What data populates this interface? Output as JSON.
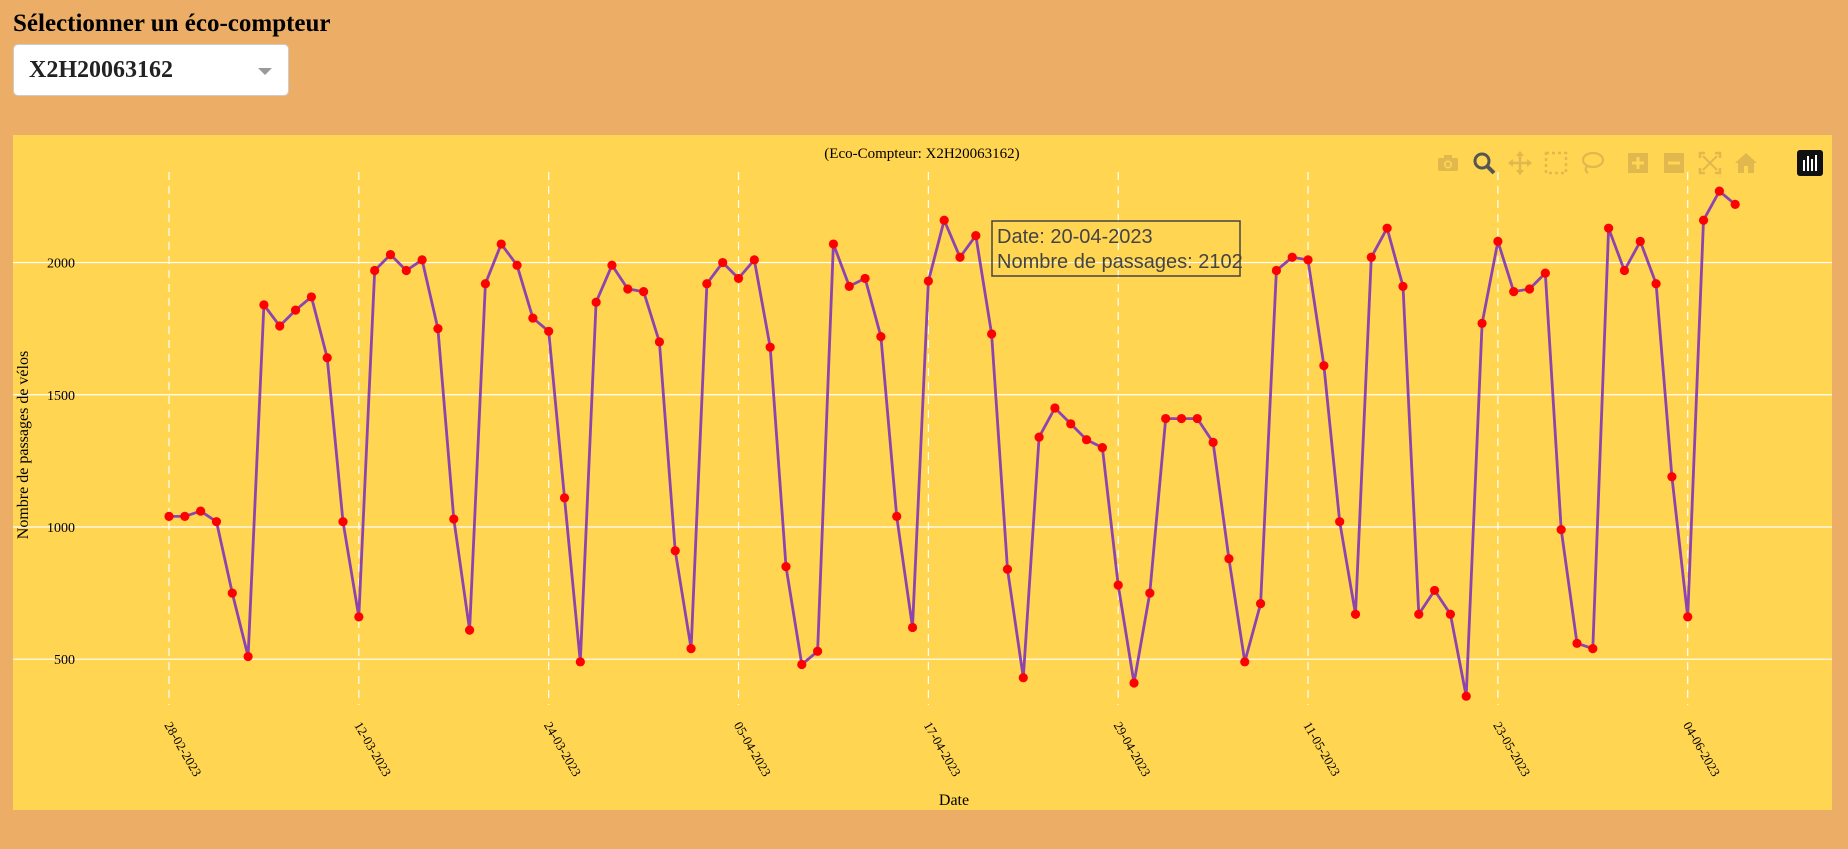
{
  "selector": {
    "label": "Sélectionner un éco-compteur",
    "value": "X2H20063162"
  },
  "modebar": {
    "icons": [
      "camera-icon",
      "zoom-icon",
      "pan-icon",
      "box-select-icon",
      "lasso-select-icon",
      "zoom-in-icon",
      "zoom-out-icon",
      "autoscale-icon",
      "home-icon",
      "plotly-logo-icon"
    ],
    "icon_color": "#E0B84E",
    "active_color": "#555555"
  },
  "tooltip": {
    "line1": "Date: 20-04-2023",
    "line2": "Nombre de passages: 2102",
    "point_index": 51
  },
  "chart_data": {
    "type": "line",
    "title": "(Eco-Compteur: X2H20063162)",
    "xlabel": "Date",
    "ylabel": "Nombre de passages de vélos",
    "x_start": "28-02-2023",
    "x_end": "06-06-2023",
    "x_ticks": [
      "28-02-2023",
      "12-03-2023",
      "24-03-2023",
      "05-04-2023",
      "17-04-2023",
      "29-04-2023",
      "11-05-2023",
      "23-05-2023",
      "04-06-2023"
    ],
    "y_ticks": [
      500,
      1000,
      1500,
      2000
    ],
    "ylim": [
      270,
      2350
    ],
    "grid": true,
    "line_color": "#8E44AD",
    "marker_color": "#FF0000",
    "series": [
      {
        "values": [
          1040,
          1040,
          1060,
          1020,
          750,
          510,
          1840,
          1760,
          1820,
          1870,
          1640,
          1020,
          660,
          1970,
          2030,
          1970,
          2010,
          1750,
          1030,
          610,
          1920,
          2070,
          1990,
          1790,
          1740,
          1110,
          490,
          1850,
          1990,
          1900,
          1890,
          1700,
          910,
          540,
          1920,
          2000,
          1940,
          2010,
          1680,
          850,
          480,
          530,
          2070,
          1910,
          1940,
          1720,
          1040,
          620,
          1930,
          2160,
          2020,
          2102,
          1730,
          840,
          430,
          1340,
          1450,
          1390,
          1330,
          1300,
          780,
          410,
          750,
          1410,
          1410,
          1410,
          1320,
          880,
          490,
          710,
          1970,
          2020,
          2010,
          1610,
          1020,
          670,
          2020,
          2130,
          1910,
          670,
          760,
          670,
          360,
          1770,
          2080,
          1890,
          1900,
          1960,
          990,
          560,
          540,
          2130,
          1970,
          2080,
          1920,
          1190,
          660,
          2160,
          2270,
          2220
        ]
      }
    ]
  }
}
